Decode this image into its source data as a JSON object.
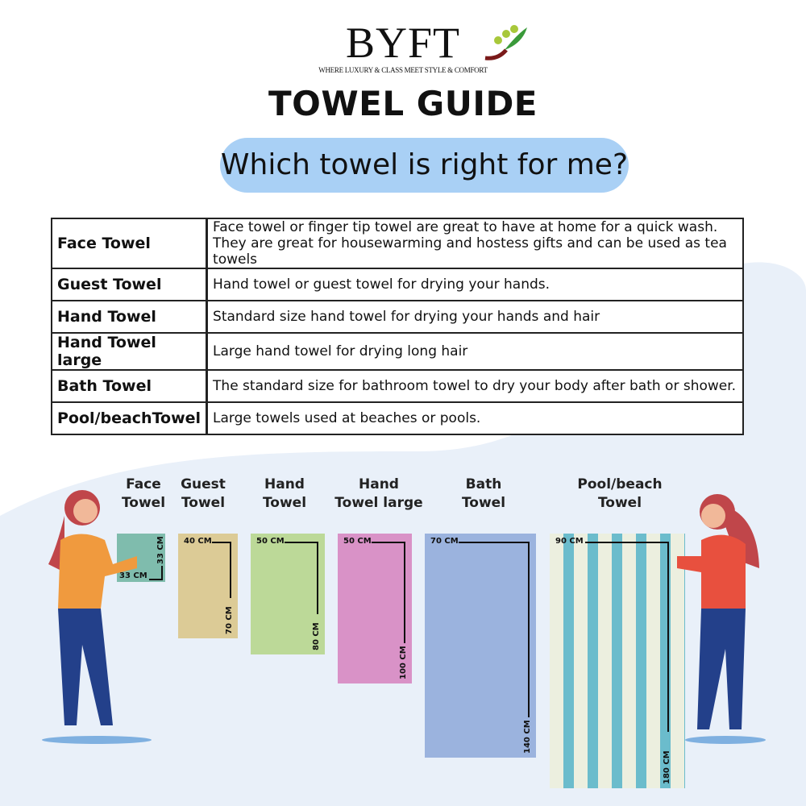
{
  "header": {
    "brand": "BYFT",
    "tagline": "WHERE LUXURY & CLASS MEET STYLE & COMFORT",
    "title": "TOWEL GUIDE",
    "question": "Which towel is right for me?"
  },
  "table": [
    {
      "name": "Face Towel",
      "desc": "Face towel or finger tip towel are great to have at home for a quick wash.",
      "desc2": "They are great for housewarming and hostess gifts and can be used as tea towels"
    },
    {
      "name": "Guest Towel",
      "desc": "Hand towel or guest towel for drying your hands."
    },
    {
      "name": "Hand Towel",
      "desc": "Standard size hand towel for drying your hands and hair"
    },
    {
      "name": "Hand Towel large",
      "desc": "Large hand towel for drying long hair"
    },
    {
      "name": "Bath Towel",
      "desc": "The standard size for bathroom towel to dry your body after bath or shower."
    },
    {
      "name": "Pool/beachTowel",
      "desc": "Large towels used at beaches or pools."
    }
  ],
  "towels": [
    {
      "line1": "Face",
      "line2": "Towel",
      "width": "33 CM",
      "length": "33 CM",
      "color": "#7fbcad"
    },
    {
      "line1": "Guest",
      "line2": "Towel",
      "width": "40 CM",
      "length": "70 CM",
      "color": "#dccb96"
    },
    {
      "line1": "Hand",
      "line2": "Towel",
      "width": "50 CM",
      "length": "80 CM",
      "color": "#bcd998"
    },
    {
      "line1": "Hand",
      "line2": "Towel large",
      "width": "50 CM",
      "length": "100 CM",
      "color": "#d992c7"
    },
    {
      "line1": "Bath",
      "line2": "Towel",
      "width": "70 CM",
      "length": "140 CM",
      "color": "#9bb3de"
    },
    {
      "line1": "Pool/beach",
      "line2": "Towel",
      "width": "90 CM",
      "length": "180 CM",
      "color": "#ecefdf",
      "stripe": "#6bbccc"
    }
  ]
}
